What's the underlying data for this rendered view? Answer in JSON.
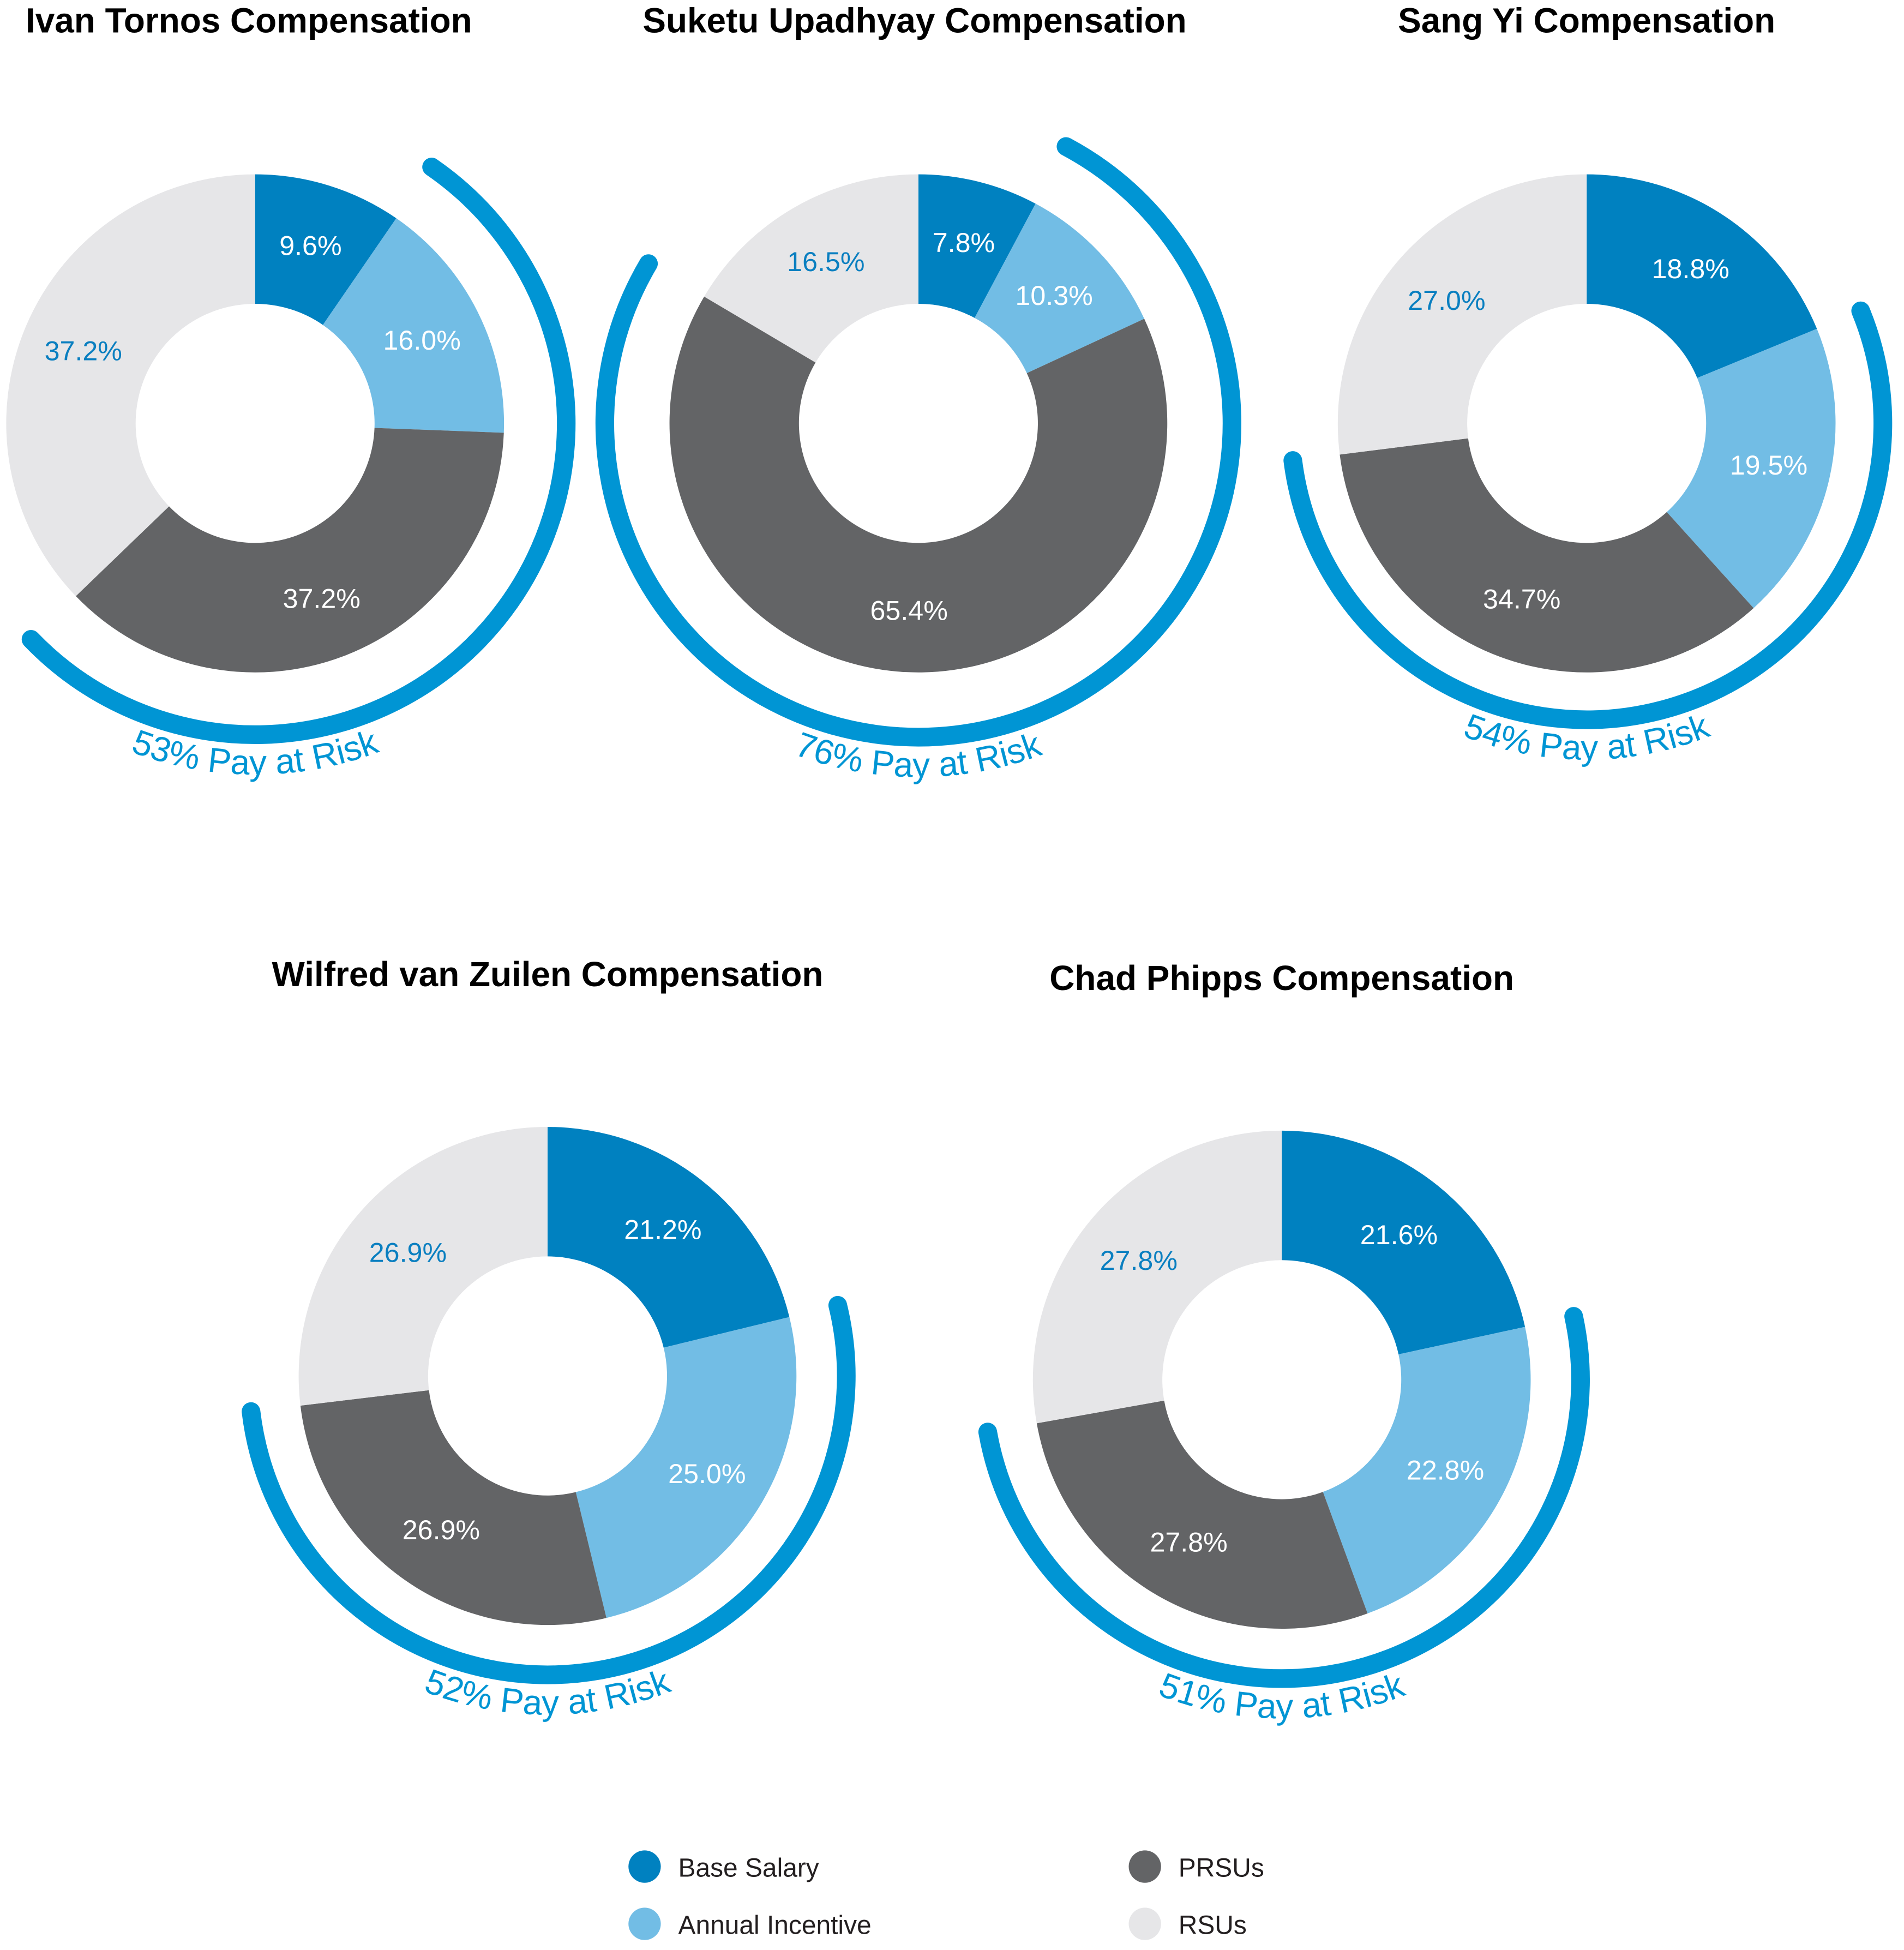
{
  "chart_data": [
    {
      "type": "pie",
      "title": "Ivan Tornos Compensation",
      "categories": [
        "Base Salary",
        "Annual Incentive",
        "PRSUs",
        "RSUs"
      ],
      "values": [
        9.6,
        16.0,
        37.2,
        37.2
      ],
      "labels": [
        "9.6%",
        "16.0%",
        "37.2%",
        "37.2%"
      ],
      "pay_at_risk": "53% Pay at Risk"
    },
    {
      "type": "pie",
      "title": "Suketu Upadhyay Compensation",
      "categories": [
        "Base Salary",
        "Annual Incentive",
        "PRSUs",
        "RSUs"
      ],
      "values": [
        7.8,
        10.3,
        65.4,
        16.5
      ],
      "labels": [
        "7.8%",
        "10.3%",
        "65.4%",
        "16.5%"
      ],
      "pay_at_risk": "76% Pay at Risk"
    },
    {
      "type": "pie",
      "title": "Sang Yi Compensation",
      "categories": [
        "Base Salary",
        "Annual Incentive",
        "PRSUs",
        "RSUs"
      ],
      "values": [
        18.8,
        19.5,
        34.7,
        27.0
      ],
      "labels": [
        "18.8%",
        "19.5%",
        "34.7%",
        "27.0%"
      ],
      "pay_at_risk": "54% Pay at Risk"
    },
    {
      "type": "pie",
      "title": "Wilfred van Zuilen Compensation",
      "categories": [
        "Base Salary",
        "Annual Incentive",
        "PRSUs",
        "RSUs"
      ],
      "values": [
        21.2,
        25.0,
        26.9,
        26.9
      ],
      "labels": [
        "21.2%",
        "25.0%",
        "26.9%",
        "26.9%"
      ],
      "pay_at_risk": "52% Pay at Risk"
    },
    {
      "type": "pie",
      "title": "Chad Phipps Compensation",
      "categories": [
        "Base Salary",
        "Annual Incentive",
        "PRSUs",
        "RSUs"
      ],
      "values": [
        21.6,
        22.8,
        27.8,
        27.8
      ],
      "labels": [
        "21.6%",
        "22.8%",
        "27.8%",
        "27.8%"
      ],
      "pay_at_risk": "51% Pay at Risk"
    }
  ],
  "legend": [
    {
      "label": "Base Salary",
      "color": "#0081C0"
    },
    {
      "label": "Annual Incentive",
      "color": "#72BDE5"
    },
    {
      "label": "PRSUs",
      "color": "#636466"
    },
    {
      "label": "RSUs",
      "color": "#E6E6E8"
    }
  ],
  "colors": {
    "segments": [
      "#0081C0",
      "#72BDE5",
      "#636466",
      "#E6E6E8"
    ],
    "label_text": [
      "#FFFFFF",
      "#FFFFFF",
      "#FFFFFF",
      "#0A7FC0"
    ],
    "risk_arc": "#0095D4"
  },
  "chart_style": "donut with pay-at-risk arc"
}
